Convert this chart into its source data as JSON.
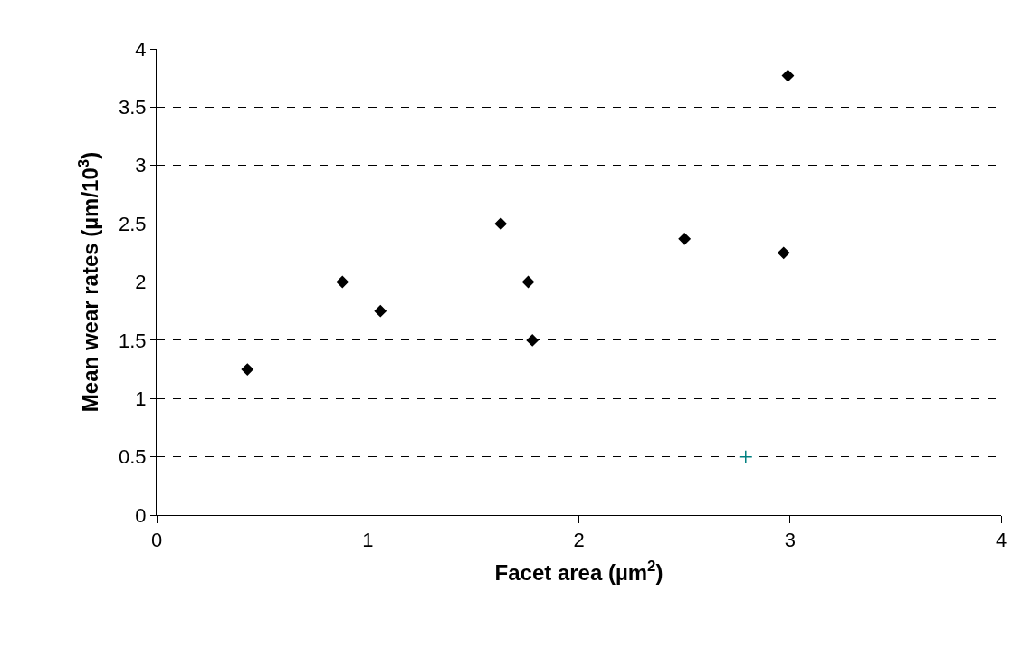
{
  "chart_data": {
    "type": "scatter",
    "xlabel": "Facet area (µm$^{2}$)",
    "ylabel": "Mean wear rates (µm/10$^{3}$)",
    "xlim": [
      0,
      4
    ],
    "xticks": [
      0,
      1,
      2,
      3,
      4
    ],
    "ylim": [
      0,
      4
    ],
    "yticks": [
      0,
      0.5,
      1,
      1.5,
      2,
      2.5,
      3,
      3.5,
      4
    ],
    "grid": "y",
    "series": [
      {
        "color": "#000000",
        "marker": "diamond",
        "x": [
          0.43,
          0.88,
          1.06,
          1.63,
          1.76,
          1.78,
          2.5,
          2.97,
          2.99
        ],
        "values": [
          1.25,
          2.0,
          1.75,
          2.5,
          2.0,
          1.5,
          2.37,
          2.25,
          3.77
        ]
      },
      {
        "color": "#008080",
        "marker": "cross",
        "x": [
          2.79
        ],
        "values": [
          0.5
        ]
      }
    ]
  }
}
